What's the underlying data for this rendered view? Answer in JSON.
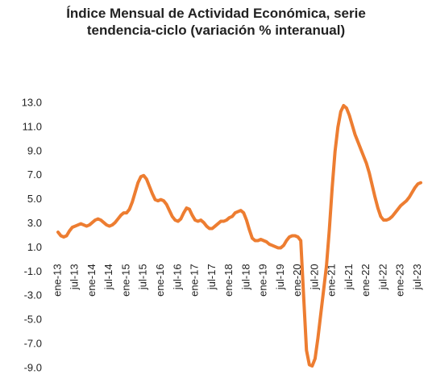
{
  "chart_data": {
    "type": "line",
    "title": "Índice Mensual de Actividad Económica, serie tendencia-ciclo (variación % interanual)",
    "categories": [
      "ene-13",
      null,
      null,
      null,
      null,
      null,
      "jul-13",
      null,
      null,
      null,
      null,
      null,
      "ene-14",
      null,
      null,
      null,
      null,
      null,
      "jul-14",
      null,
      null,
      null,
      null,
      null,
      "ene-15",
      null,
      null,
      null,
      null,
      null,
      "jul-15",
      null,
      null,
      null,
      null,
      null,
      "ene-16",
      null,
      null,
      null,
      null,
      null,
      "jul-16",
      null,
      null,
      null,
      null,
      null,
      "ene-17",
      null,
      null,
      null,
      null,
      null,
      "jul-17",
      null,
      null,
      null,
      null,
      null,
      "ene-18",
      null,
      null,
      null,
      null,
      null,
      "jul-18",
      null,
      null,
      null,
      null,
      null,
      "ene-19",
      null,
      null,
      null,
      null,
      null,
      "jul-19",
      null,
      null,
      null,
      null,
      null,
      "ene-20",
      null,
      null,
      null,
      null,
      null,
      "jul-20",
      null,
      null,
      null,
      null,
      null,
      "ene-21",
      null,
      null,
      null,
      null,
      null,
      "jul-21",
      null,
      null,
      null,
      null,
      null,
      "ene-22",
      null,
      null,
      null,
      null,
      null,
      "jul-22",
      null,
      null,
      null,
      null,
      null,
      "ene-23",
      null,
      null,
      null,
      null,
      null,
      "jul-23",
      null
    ],
    "values": [
      2.3,
      2.0,
      1.9,
      2.0,
      2.4,
      2.7,
      2.8,
      2.9,
      3.0,
      2.9,
      2.8,
      2.9,
      3.1,
      3.3,
      3.4,
      3.3,
      3.1,
      2.9,
      2.8,
      2.9,
      3.1,
      3.4,
      3.7,
      3.9,
      3.9,
      4.2,
      4.8,
      5.6,
      6.4,
      6.9,
      7.0,
      6.7,
      6.1,
      5.5,
      5.0,
      4.9,
      5.0,
      4.9,
      4.6,
      4.1,
      3.6,
      3.3,
      3.2,
      3.4,
      3.9,
      4.3,
      4.2,
      3.7,
      3.3,
      3.2,
      3.3,
      3.1,
      2.8,
      2.6,
      2.6,
      2.8,
      3.0,
      3.2,
      3.2,
      3.3,
      3.5,
      3.6,
      3.9,
      4.0,
      4.1,
      3.9,
      3.3,
      2.5,
      1.8,
      1.6,
      1.6,
      1.7,
      1.6,
      1.5,
      1.3,
      1.2,
      1.1,
      1.0,
      1.0,
      1.2,
      1.6,
      1.9,
      2.0,
      2.0,
      1.9,
      1.6,
      -3.0,
      -7.5,
      -8.7,
      -8.8,
      -8.2,
      -6.5,
      -4.5,
      -2.5,
      -0.5,
      2.5,
      6.0,
      9.0,
      11.0,
      12.3,
      12.8,
      12.6,
      12.0,
      11.2,
      10.4,
      9.8,
      9.2,
      8.6,
      8.0,
      7.2,
      6.2,
      5.2,
      4.3,
      3.6,
      3.3,
      3.3,
      3.4,
      3.6,
      3.9,
      4.2,
      4.5,
      4.7,
      4.9,
      5.2,
      5.6,
      6.0,
      6.3,
      6.4
    ],
    "color": "#ed7d31",
    "ylim": [
      -9,
      13
    ],
    "yticks": [
      {
        "value": -9,
        "label": "-9.0"
      },
      {
        "value": -7,
        "label": "-7.0"
      },
      {
        "value": -5,
        "label": "-5.0"
      },
      {
        "value": -3,
        "label": "-3.0"
      },
      {
        "value": -1,
        "label": "-1.0"
      },
      {
        "value": 1,
        "label": "1.0"
      },
      {
        "value": 3,
        "label": "3.0"
      },
      {
        "value": 5,
        "label": "5.0"
      },
      {
        "value": 7,
        "label": "7.0"
      },
      {
        "value": 9,
        "label": "9.0"
      },
      {
        "value": 11,
        "label": "11.0"
      },
      {
        "value": 13,
        "label": "13.0"
      }
    ],
    "grid": false
  }
}
